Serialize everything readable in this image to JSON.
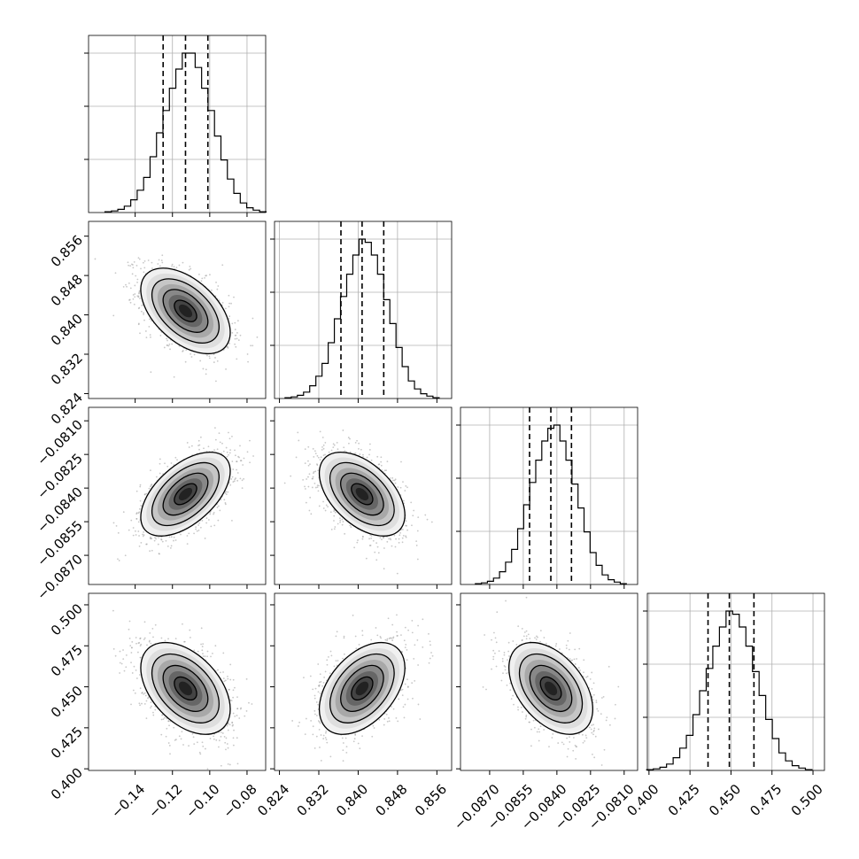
{
  "chart_data": {
    "type": "corner",
    "title": "",
    "grid": true,
    "parameters": [
      {
        "xlim": [
          -0.165,
          -0.07
        ],
        "ticks": [
          -0.14,
          -0.12,
          -0.1,
          -0.08
        ],
        "tick_labels": [
          "−0.14",
          "−0.12",
          "−0.10",
          "−0.08"
        ],
        "quantiles": [
          -0.125,
          -0.113,
          -0.101
        ],
        "hist": [
          0.5,
          1,
          2,
          4,
          8,
          14,
          22,
          35,
          50,
          64,
          78,
          90,
          100,
          100,
          91,
          78,
          64,
          48,
          33,
          21,
          12,
          6,
          3,
          1.5,
          0.5
        ]
      },
      {
        "xlim": [
          0.823,
          0.859
        ],
        "ticks": [
          0.824,
          0.832,
          0.84,
          0.848,
          0.856
        ],
        "tick_labels": [
          "0.824",
          "0.832",
          "0.840",
          "0.848",
          "0.856"
        ],
        "quantiles": [
          0.8365,
          0.8408,
          0.8452
        ],
        "hist": [
          0.5,
          1,
          2,
          4,
          8,
          14,
          22,
          35,
          50,
          64,
          78,
          90,
          100,
          98,
          90,
          78,
          62,
          47,
          32,
          20,
          11,
          6,
          3,
          1.5,
          0.5
        ]
      },
      {
        "xlim": [
          -0.0883,
          -0.0804
        ],
        "ticks": [
          -0.087,
          -0.0855,
          -0.084,
          -0.0825,
          -0.081
        ],
        "tick_labels": [
          "−0.0870",
          "−0.0855",
          "−0.0840",
          "−0.0825",
          "−0.0810"
        ],
        "quantiles": [
          -0.08522,
          -0.08427,
          -0.08335
        ],
        "hist": [
          0.5,
          1,
          2,
          4,
          8,
          14,
          22,
          35,
          50,
          64,
          78,
          90,
          98,
          100,
          90,
          78,
          63,
          48,
          33,
          20,
          12,
          6,
          3,
          1.5,
          0.5
        ]
      },
      {
        "xlim": [
          0.399,
          0.507
        ],
        "ticks": [
          0.4,
          0.425,
          0.45,
          0.475,
          0.5
        ],
        "tick_labels": [
          "0.400",
          "0.425",
          "0.450",
          "0.475",
          "0.500"
        ],
        "quantiles": [
          0.436,
          0.449,
          0.464
        ],
        "hist": [
          0.5,
          1,
          2,
          4,
          8,
          14,
          22,
          35,
          50,
          64,
          78,
          90,
          100,
          98,
          90,
          78,
          62,
          47,
          32,
          20,
          11,
          6,
          3,
          1.5,
          0.5
        ]
      }
    ],
    "pairs": [
      {
        "row": 1,
        "col": 0,
        "mean": [
          -0.113,
          0.8408
        ],
        "corr": -0.5
      },
      {
        "row": 2,
        "col": 0,
        "mean": [
          -0.113,
          -0.08427
        ],
        "corr": 0.55
      },
      {
        "row": 2,
        "col": 1,
        "mean": [
          0.8408,
          -0.08427
        ],
        "corr": -0.5
      },
      {
        "row": 3,
        "col": 0,
        "mean": [
          -0.113,
          0.449
        ],
        "corr": -0.45
      },
      {
        "row": 3,
        "col": 1,
        "mean": [
          0.8408,
          0.449
        ],
        "corr": 0.45
      },
      {
        "row": 3,
        "col": 2,
        "mean": [
          -0.08427,
          0.449
        ],
        "corr": -0.45
      }
    ],
    "contour_levels_sigma": [
      0.5,
      1.0,
      1.5,
      2.0
    ]
  }
}
